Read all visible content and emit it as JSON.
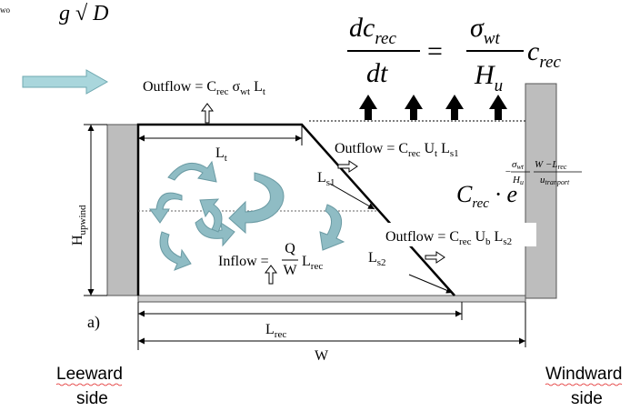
{
  "corner_fragment": "wo",
  "equation": {
    "lhs_num": [
      "dc",
      "rec"
    ],
    "lhs_den": "dt",
    "eq": "=",
    "rhs_num": [
      "σ",
      "wt"
    ],
    "rhs_den": [
      "H",
      "u"
    ],
    "factor": [
      "c",
      "rec"
    ]
  },
  "exponential": {
    "base": [
      "C",
      "rec",
      " · e"
    ],
    "minus": "−",
    "frac1_num": [
      "σ",
      "wt"
    ],
    "frac1_den": [
      "H",
      "u"
    ],
    "frac2_num": [
      "W −L",
      "rec"
    ],
    "frac2_den": [
      "u",
      "tranport"
    ]
  },
  "labels": {
    "outflow_top": [
      "Outflow = C",
      "rec",
      " σ",
      "wt",
      " L",
      "t"
    ],
    "outflow_s1": [
      "Outflow = C",
      "rec",
      " U",
      "t",
      " L",
      "s1"
    ],
    "outflow_s2": [
      "Outflow = C",
      "rec",
      " U",
      "b",
      " L",
      "s2"
    ],
    "inflow": {
      "prefix": "Inflow = ",
      "num": "Q",
      "den": "W",
      "suffix": [
        "L",
        "rec"
      ]
    },
    "l_t": [
      "L",
      "t"
    ],
    "l_s1": [
      "L",
      "s1"
    ],
    "l_s2": [
      "L",
      "s2"
    ],
    "h_upwind": [
      "H",
      "upwind"
    ],
    "l_rec": [
      "L",
      "rec"
    ],
    "w": "W",
    "panel": "a)",
    "leeward": [
      "Leeward",
      "side"
    ],
    "windward": [
      "Windward",
      "side"
    ]
  }
}
